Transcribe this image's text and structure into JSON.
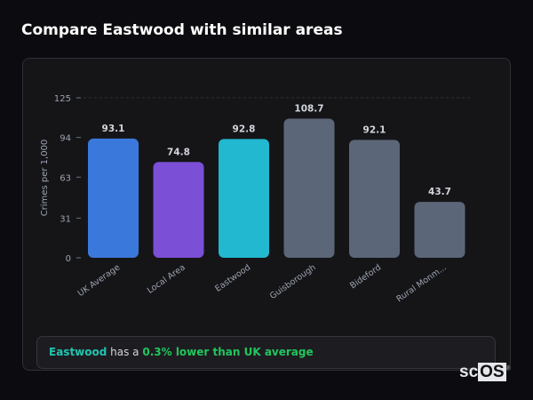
{
  "title": "Compare Eastwood with similar areas",
  "chart_data": {
    "type": "bar",
    "title": "",
    "xlabel": "",
    "ylabel": "Crimes per 1,000",
    "ylim": [
      0,
      125
    ],
    "yticks": [
      0,
      31,
      63,
      94,
      125
    ],
    "grid": "top dashed line only",
    "categories": [
      "UK Average",
      "Local Area",
      "Eastwood",
      "Guisborough",
      "Bideford",
      "Rural Monm..."
    ],
    "values": [
      93.1,
      74.8,
      92.8,
      108.7,
      92.1,
      43.7
    ],
    "colors": [
      "#3b78dc",
      "#7b4fd6",
      "#22b8d0",
      "#5b6678",
      "#5b6678",
      "#5b6678"
    ]
  },
  "footer": {
    "area": "Eastwood",
    "middle": " has a ",
    "highlight": "0.3% lower than UK average",
    "area_color": "#22c4b0",
    "highlight_color": "#22c55e"
  },
  "logo": {
    "text_a": "sc",
    "text_b": "OS",
    "mark": "®"
  }
}
